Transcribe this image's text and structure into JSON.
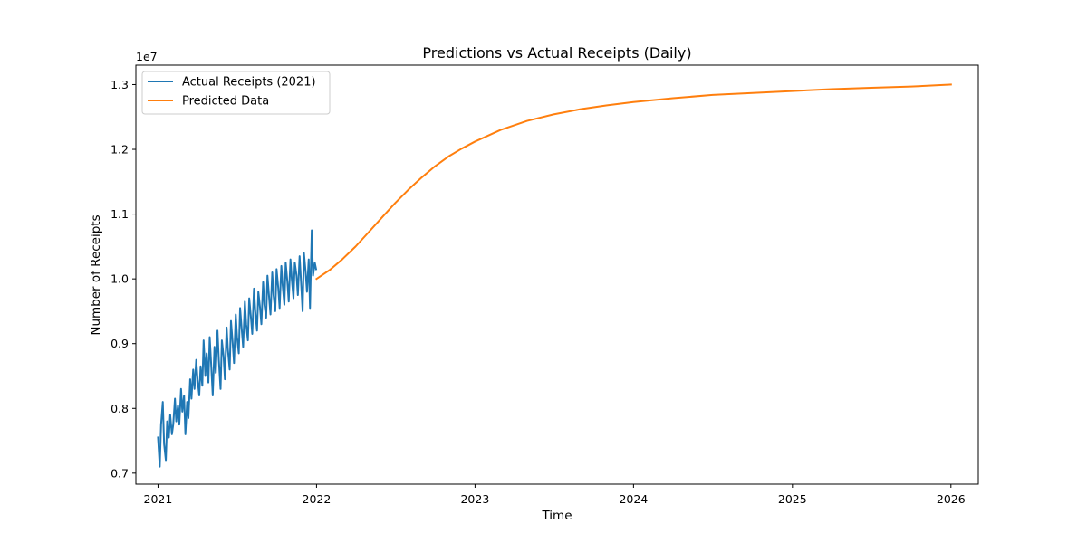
{
  "chart_data": {
    "type": "line",
    "title": "Predictions vs Actual Receipts (Daily)",
    "xlabel": "Time",
    "ylabel": "Number of Receipts",
    "y_offset_label": "1e7",
    "xlim": [
      "2020-11-11",
      "2026-03-05"
    ],
    "ylim": [
      6.83,
      13.3
    ],
    "x_ticks": [
      "2021",
      "2022",
      "2023",
      "2024",
      "2025",
      "2026"
    ],
    "x_tick_dates": [
      "2021-01-01",
      "2022-01-01",
      "2023-01-01",
      "2024-01-01",
      "2025-01-01",
      "2026-01-01"
    ],
    "y_ticks": [
      7.0,
      8.0,
      9.0,
      10.0,
      11.0,
      12.0,
      13.0
    ],
    "y_tick_labels": [
      "0.7",
      "0.8",
      "0.9",
      "1.0",
      "1.1",
      "1.2",
      "1.3"
    ],
    "grid": false,
    "legend_position": "top-left",
    "series": [
      {
        "name": "Actual Receipts (2021)",
        "color": "#1f77b4",
        "x": [
          "2021-01-01",
          "2021-01-05",
          "2021-01-08",
          "2021-01-12",
          "2021-01-15",
          "2021-01-19",
          "2021-01-22",
          "2021-01-26",
          "2021-01-29",
          "2021-02-02",
          "2021-02-05",
          "2021-02-09",
          "2021-02-12",
          "2021-02-16",
          "2021-02-19",
          "2021-02-23",
          "2021-02-26",
          "2021-03-02",
          "2021-03-05",
          "2021-03-09",
          "2021-03-12",
          "2021-03-16",
          "2021-03-19",
          "2021-03-23",
          "2021-03-26",
          "2021-03-30",
          "2021-04-02",
          "2021-04-06",
          "2021-04-09",
          "2021-04-13",
          "2021-04-16",
          "2021-04-20",
          "2021-04-23",
          "2021-04-27",
          "2021-04-30",
          "2021-05-04",
          "2021-05-07",
          "2021-05-11",
          "2021-05-14",
          "2021-05-18",
          "2021-05-21",
          "2021-05-25",
          "2021-05-28",
          "2021-06-01",
          "2021-06-04",
          "2021-06-08",
          "2021-06-11",
          "2021-06-15",
          "2021-06-18",
          "2021-06-22",
          "2021-06-25",
          "2021-06-29",
          "2021-07-02",
          "2021-07-06",
          "2021-07-09",
          "2021-07-13",
          "2021-07-16",
          "2021-07-20",
          "2021-07-23",
          "2021-07-27",
          "2021-07-30",
          "2021-08-03",
          "2021-08-06",
          "2021-08-10",
          "2021-08-13",
          "2021-08-17",
          "2021-08-20",
          "2021-08-24",
          "2021-08-27",
          "2021-08-31",
          "2021-09-03",
          "2021-09-07",
          "2021-09-10",
          "2021-09-14",
          "2021-09-17",
          "2021-09-21",
          "2021-09-24",
          "2021-09-28",
          "2021-10-01",
          "2021-10-05",
          "2021-10-08",
          "2021-10-12",
          "2021-10-15",
          "2021-10-19",
          "2021-10-22",
          "2021-10-26",
          "2021-10-29",
          "2021-11-02",
          "2021-11-05",
          "2021-11-09",
          "2021-11-12",
          "2021-11-16",
          "2021-11-19",
          "2021-11-23",
          "2021-11-26",
          "2021-11-30",
          "2021-12-03",
          "2021-12-07",
          "2021-12-10",
          "2021-12-14",
          "2021-12-17",
          "2021-12-21",
          "2021-12-24",
          "2021-12-28",
          "2021-12-31"
        ],
        "values": [
          7.55,
          7.1,
          7.75,
          8.1,
          7.45,
          7.2,
          7.8,
          7.55,
          7.9,
          7.6,
          7.75,
          8.15,
          7.8,
          8.05,
          7.75,
          8.3,
          7.95,
          8.2,
          7.6,
          8.1,
          7.85,
          8.45,
          8.15,
          8.6,
          8.3,
          8.75,
          8.45,
          8.2,
          8.65,
          8.35,
          9.05,
          8.5,
          8.85,
          8.4,
          9.1,
          8.6,
          8.2,
          8.95,
          8.55,
          9.2,
          8.75,
          8.3,
          9.05,
          8.8,
          8.45,
          9.25,
          8.9,
          8.6,
          9.35,
          9.0,
          8.7,
          9.45,
          9.1,
          8.85,
          9.55,
          9.2,
          8.95,
          9.65,
          9.3,
          9.05,
          9.7,
          9.4,
          9.15,
          9.85,
          9.5,
          9.2,
          9.8,
          9.55,
          9.3,
          9.95,
          9.6,
          9.4,
          10.05,
          9.7,
          9.45,
          10.1,
          9.75,
          9.5,
          10.15,
          9.85,
          9.55,
          10.2,
          9.9,
          9.6,
          10.25,
          9.95,
          9.65,
          10.3,
          10.0,
          9.7,
          10.25,
          10.05,
          9.75,
          10.35,
          10.0,
          9.5,
          10.4,
          10.1,
          9.8,
          10.3,
          9.55,
          10.75,
          10.05,
          10.25,
          10.15
        ]
      },
      {
        "name": "Predicted Data",
        "color": "#ff7f0e",
        "x": [
          "2022-01-01",
          "2022-02-01",
          "2022-03-01",
          "2022-04-01",
          "2022-05-01",
          "2022-06-01",
          "2022-07-01",
          "2022-08-01",
          "2022-09-01",
          "2022-10-01",
          "2022-11-01",
          "2022-12-01",
          "2023-01-01",
          "2023-03-01",
          "2023-05-01",
          "2023-07-01",
          "2023-09-01",
          "2023-11-01",
          "2024-01-01",
          "2024-04-01",
          "2024-07-01",
          "2024-10-01",
          "2025-01-01",
          "2025-04-01",
          "2025-07-01",
          "2025-10-01",
          "2026-01-01"
        ],
        "values": [
          10.0,
          10.14,
          10.3,
          10.5,
          10.72,
          10.95,
          11.17,
          11.38,
          11.57,
          11.74,
          11.89,
          12.01,
          12.12,
          12.3,
          12.44,
          12.54,
          12.62,
          12.68,
          12.73,
          12.79,
          12.84,
          12.87,
          12.9,
          12.93,
          12.95,
          12.97,
          13.0
        ]
      }
    ]
  }
}
